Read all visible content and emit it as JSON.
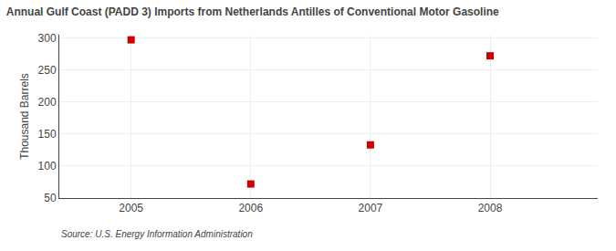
{
  "chart_data": {
    "type": "scatter",
    "title": "Annual Gulf Coast (PADD 3) Imports from Netherlands Antilles of Conventional Motor Gasoline",
    "ylabel": "Thousand Barrels",
    "annotations": [
      "Source: U.S. Energy Information Administration"
    ],
    "x": [
      2005,
      2006,
      2007,
      2008
    ],
    "values": [
      297,
      72,
      133,
      272
    ],
    "color": "#cc0000",
    "marker": "square",
    "xlim": [
      2004.4,
      2008.9
    ],
    "xticks": [
      2005,
      2006,
      2007,
      2008
    ],
    "ylim": [
      50,
      305
    ],
    "yticks": [
      50,
      100,
      150,
      200,
      250,
      300
    ],
    "grid": true
  }
}
